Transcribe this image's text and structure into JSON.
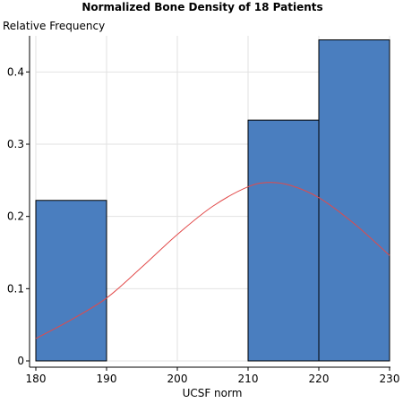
{
  "chart_data": {
    "type": "bar",
    "title": "Normalized Bone Density of 18 Patients",
    "xlabel": "UCSF norm",
    "ylabel": "Relative Frequency",
    "xlim": [
      180,
      230
    ],
    "ylim": [
      0,
      0.45
    ],
    "x_ticks": [
      "180",
      "190",
      "200",
      "210",
      "220",
      "230"
    ],
    "y_ticks": [
      "0",
      "0.1",
      "0.2",
      "0.3",
      "0.4"
    ],
    "grid": true,
    "bins": [
      {
        "start": 180,
        "end": 190,
        "value": 0.2222
      },
      {
        "start": 190,
        "end": 200,
        "value": 0
      },
      {
        "start": 200,
        "end": 210,
        "value": 0
      },
      {
        "start": 210,
        "end": 220,
        "value": 0.3333
      },
      {
        "start": 220,
        "end": 230,
        "value": 0.4444
      }
    ],
    "density_curve": {
      "type": "normal",
      "x": [
        180,
        185,
        190,
        195,
        200,
        205,
        210,
        213,
        216,
        220,
        225,
        230
      ],
      "y": [
        0.031,
        0.057,
        0.087,
        0.13,
        0.175,
        0.214,
        0.241,
        0.247,
        0.243,
        0.226,
        0.19,
        0.146
      ]
    },
    "colors": {
      "bar_fill": "#4a7ebf",
      "bar_stroke": "#000000",
      "curve": "#e24a4a",
      "grid": "#e2e2e2",
      "axis": "#000000"
    }
  }
}
